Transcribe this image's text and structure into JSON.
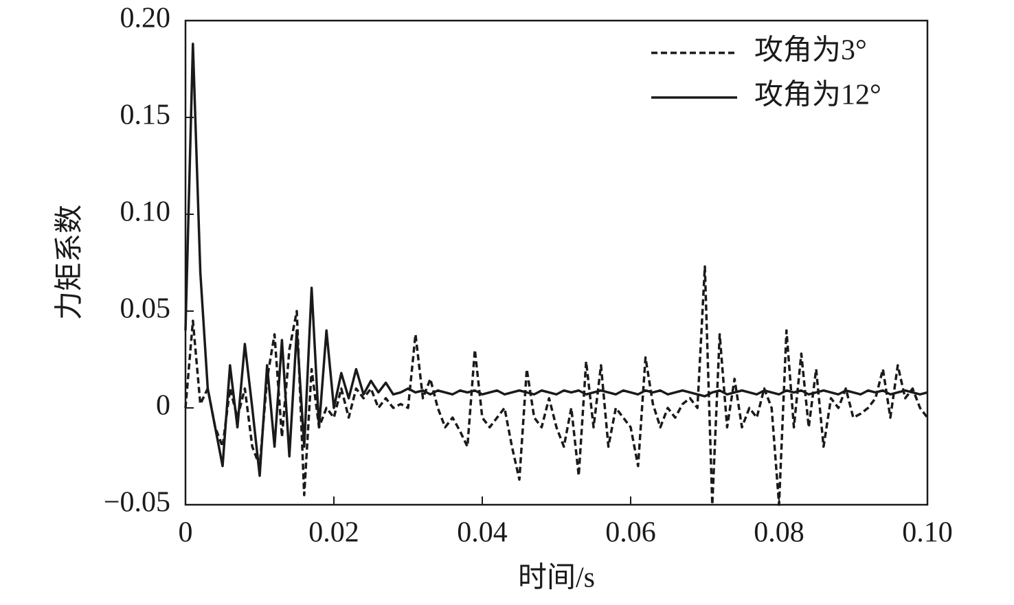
{
  "chart_data": {
    "type": "line",
    "xlabel": "时间/s",
    "ylabel": "力矩系数",
    "x": [
      0,
      0.001,
      0.002,
      0.003,
      0.004,
      0.005,
      0.006,
      0.007,
      0.008,
      0.009,
      0.01,
      0.011,
      0.012,
      0.013,
      0.014,
      0.015,
      0.016,
      0.017,
      0.018,
      0.019,
      0.02,
      0.021,
      0.022,
      0.023,
      0.024,
      0.025,
      0.026,
      0.027,
      0.028,
      0.029,
      0.03,
      0.031,
      0.032,
      0.033,
      0.034,
      0.035,
      0.036,
      0.037,
      0.038,
      0.039,
      0.04,
      0.041,
      0.042,
      0.043,
      0.044,
      0.045,
      0.046,
      0.047,
      0.048,
      0.049,
      0.05,
      0.051,
      0.052,
      0.053,
      0.054,
      0.055,
      0.056,
      0.057,
      0.058,
      0.059,
      0.06,
      0.061,
      0.062,
      0.063,
      0.064,
      0.065,
      0.066,
      0.067,
      0.068,
      0.069,
      0.07,
      0.071,
      0.072,
      0.073,
      0.074,
      0.075,
      0.076,
      0.077,
      0.078,
      0.079,
      0.08,
      0.081,
      0.082,
      0.083,
      0.084,
      0.085,
      0.086,
      0.087,
      0.088,
      0.089,
      0.09,
      0.091,
      0.092,
      0.093,
      0.094,
      0.095,
      0.096,
      0.097,
      0.098,
      0.099,
      0.1
    ],
    "series": [
      {
        "name": "攻角为3°",
        "color": "#1a1a1a",
        "linestyle": "dashed",
        "values": [
          0,
          0.045,
          0.002,
          0.01,
          -0.01,
          -0.02,
          0.01,
          -0.005,
          0.01,
          -0.02,
          -0.03,
          0.015,
          0.038,
          -0.015,
          0.03,
          0.05,
          -0.045,
          0.02,
          -0.01,
          0,
          -0.005,
          0.01,
          -0.005,
          0.01,
          0.005,
          0.01,
          0,
          0.005,
          0,
          0.002,
          0,
          0.038,
          0.005,
          0.015,
          0,
          -0.01,
          -0.005,
          -0.012,
          -0.02,
          0.03,
          -0.005,
          -0.01,
          -0.005,
          0,
          -0.02,
          -0.037,
          0.02,
          -0.005,
          -0.01,
          0.005,
          -0.01,
          -0.02,
          0,
          -0.035,
          0.024,
          -0.01,
          0.022,
          -0.02,
          0,
          -0.005,
          -0.01,
          -0.03,
          0.026,
          0.002,
          -0.01,
          0,
          -0.005,
          0.002,
          0.005,
          0,
          0.073,
          -0.05,
          0.038,
          -0.01,
          0.015,
          -0.01,
          0,
          -0.005,
          0.01,
          0,
          -0.05,
          0.04,
          -0.01,
          0.028,
          -0.01,
          0.02,
          -0.02,
          0.005,
          0,
          0.01,
          -0.005,
          -0.003,
          0,
          0.005,
          0.02,
          -0.005,
          0.022,
          0.005,
          0.01,
          0,
          -0.005
        ]
      },
      {
        "name": "攻角为12°",
        "color": "#1a1a1a",
        "linestyle": "solid",
        "values": [
          0.04,
          0.188,
          0.07,
          0.01,
          -0.01,
          -0.03,
          0.022,
          -0.01,
          0.033,
          0,
          -0.035,
          0.022,
          -0.02,
          0.035,
          -0.025,
          0.04,
          -0.02,
          0.062,
          -0.01,
          0.04,
          0,
          0.018,
          0.005,
          0.02,
          0.007,
          0.014,
          0.008,
          0.013,
          0.007,
          0.008,
          0.01,
          0.008,
          0.009,
          0.007,
          0.009,
          0.008,
          0.007,
          0.009,
          0.008,
          0.009,
          0.007,
          0.008,
          0.009,
          0.007,
          0.008,
          0.009,
          0.008,
          0.007,
          0.009,
          0.008,
          0.007,
          0.009,
          0.008,
          0.009,
          0.007,
          0.008,
          0.009,
          0.008,
          0.007,
          0.009,
          0.008,
          0.007,
          0.009,
          0.008,
          0.009,
          0.007,
          0.008,
          0.009,
          0.008,
          0.007,
          0.006,
          0.008,
          0.009,
          0.007,
          0.008,
          0.009,
          0.008,
          0.007,
          0.009,
          0.008,
          0.007,
          0.009,
          0.008,
          0.009,
          0.007,
          0.008,
          0.009,
          0.008,
          0.007,
          0.009,
          0.008,
          0.007,
          0.009,
          0.008,
          0.009,
          0.007,
          0.008,
          0.009,
          0.008,
          0.007,
          0.008
        ]
      }
    ],
    "xlim": [
      0,
      0.1
    ],
    "xticks": [
      0,
      0.02,
      0.04,
      0.06,
      0.08,
      {
        "value": 0.1,
        "label": "0.10"
      }
    ],
    "ylim": [
      -0.05,
      0.2
    ],
    "yticks": [
      {
        "value": -0.05,
        "label": "−0.05"
      },
      0,
      0.05,
      {
        "value": 0.1,
        "label": "0.10"
      },
      0.15,
      {
        "value": 0.2,
        "label": "0.20"
      }
    ],
    "legend": "upper right"
  }
}
